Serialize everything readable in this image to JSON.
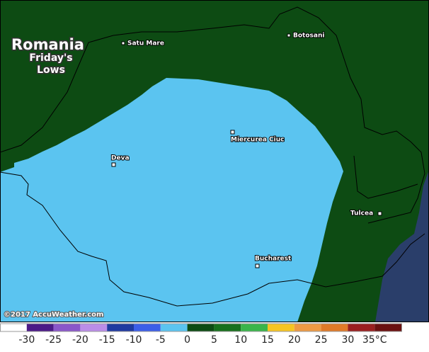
{
  "map": {
    "title": "Romania",
    "subtitle": [
      "Friday's",
      "Lows"
    ],
    "cities": [
      "Satu Mare",
      "Botosani",
      "Miercurea Ciuc",
      "Deva",
      "Tulcea",
      "Bucharest"
    ],
    "copyright": "©2017 AccuWeather.com",
    "legend": {
      "colors": [
        "#ffffff",
        "#4b1a87",
        "#8a57c9",
        "#bb8de8",
        "#1f3aa0",
        "#3c5ee8",
        "#5bc4f0",
        "#0d4b13",
        "#17701c",
        "#3ab54a",
        "#f6c522",
        "#ee9a44",
        "#e07a28",
        "#9a1f1f",
        "#6b1010"
      ],
      "labels": [
        "-30",
        "-25",
        "-20",
        "-15",
        "-10",
        "-5",
        "0",
        "5",
        "10",
        "15",
        "20",
        "25",
        "30",
        "35°C"
      ]
    }
  }
}
